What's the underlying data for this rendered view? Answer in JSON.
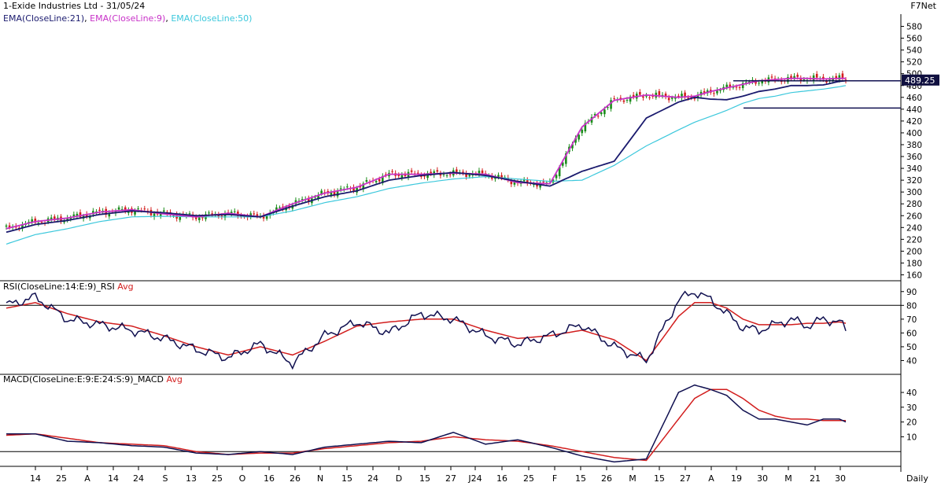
{
  "header": {
    "title": "1-Exide Industries Ltd - 31/05/24",
    "brand": "F7Net",
    "ema_labels": [
      {
        "text": "EMA(CloseLine:21)",
        "color": "#1a1a6e"
      },
      {
        "text": "EMA(CloseLine:9)",
        "color": "#c832c8"
      },
      {
        "text": "EMA(CloseLine:50)",
        "color": "#3cc8dc"
      }
    ],
    "comma": ", "
  },
  "price_panel": {
    "y_ticks": [
      "160",
      "180",
      "200",
      "220",
      "240",
      "260",
      "280",
      "300",
      "320",
      "340",
      "360",
      "380",
      "400",
      "420",
      "440",
      "460",
      "480",
      "500",
      "520",
      "540",
      "560",
      "580"
    ],
    "last_price": "489.25"
  },
  "rsi_panel": {
    "label": "RSI(CloseLine:14:E:9)_RSI",
    "avg_label": "Avg",
    "y_ticks": [
      "40",
      "50",
      "60",
      "70",
      "80",
      "90"
    ]
  },
  "macd_panel": {
    "label": "MACD(CloseLine:E:9:E:24:S:9)_MACD",
    "avg_label": "Avg",
    "y_ticks": [
      "10",
      "20",
      "30",
      "40"
    ]
  },
  "x_axis": {
    "ticks": [
      "14",
      "25",
      "A",
      "14",
      "24",
      "S",
      "13",
      "25",
      "O",
      "16",
      "26",
      "N",
      "15",
      "24",
      "D",
      "15",
      "27",
      "J24",
      "16",
      "25",
      "F",
      "15",
      "26",
      "M",
      "15",
      "27",
      "A",
      "19",
      "30",
      "M",
      "21",
      "30"
    ],
    "period": "Daily"
  },
  "colors": {
    "ema21": "#1a1a6e",
    "ema9": "#c832c8",
    "ema50": "#3cc8dc",
    "candle_up": "#1a8c1a",
    "candle_down": "#d21e1e",
    "rsi": "#101050",
    "rsi_avg": "#d21e1e",
    "macd": "#101050",
    "macd_avg": "#d21e1e"
  },
  "chart_data": [
    {
      "type": "line",
      "title": "1-Exide Industries Ltd - 31/05/24",
      "subtitle": "",
      "xlabel": "",
      "ylabel": "",
      "ylim": [
        150,
        590
      ],
      "x": [
        1,
        10,
        20,
        30,
        40,
        50,
        60,
        70,
        80,
        90,
        100,
        110,
        120,
        130,
        140,
        150,
        160,
        170,
        180,
        190,
        200,
        210,
        215,
        220,
        225,
        230,
        235,
        240,
        245,
        250,
        255,
        260,
        262
      ],
      "series": [
        {
          "name": "EMA(CloseLine:21)",
          "values": [
            232,
            245,
            252,
            262,
            268,
            265,
            260,
            262,
            258,
            276,
            292,
            302,
            320,
            328,
            333,
            328,
            318,
            310,
            335,
            352,
            425,
            452,
            460,
            457,
            456,
            462,
            470,
            474,
            480,
            480,
            481,
            487,
            488
          ]
        },
        {
          "name": "EMA(CloseLine:9)",
          "values": [
            238,
            250,
            256,
            266,
            270,
            263,
            258,
            264,
            258,
            280,
            298,
            308,
            330,
            330,
            332,
            330,
            316,
            314,
            410,
            455,
            464,
            460,
            462,
            470,
            476,
            482,
            488,
            490,
            492,
            492,
            491,
            492,
            492
          ]
        },
        {
          "name": "EMA(CloseLine:50)",
          "values": [
            212,
            228,
            238,
            250,
            258,
            259,
            258,
            258,
            258,
            268,
            282,
            292,
            306,
            315,
            322,
            326,
            322,
            318,
            320,
            345,
            378,
            405,
            418,
            428,
            438,
            450,
            458,
            462,
            468,
            471,
            474,
            478,
            480
          ]
        }
      ],
      "horizontal_levels": [
        488,
        442
      ],
      "last_price": 489.25
    },
    {
      "type": "line",
      "title": "RSI(CloseLine:14:E:9)_RSI",
      "ylim": [
        30,
        95
      ],
      "reference_lines": [
        80
      ],
      "x": [
        1,
        10,
        20,
        30,
        40,
        50,
        60,
        70,
        80,
        90,
        100,
        110,
        120,
        130,
        140,
        150,
        160,
        170,
        180,
        190,
        200,
        210,
        215,
        220,
        225,
        230,
        235,
        240,
        245,
        250,
        255,
        260,
        262
      ],
      "series": [
        {
          "name": "RSI",
          "values": [
            80,
            86,
            70,
            66,
            62,
            56,
            48,
            42,
            52,
            38,
            58,
            68,
            60,
            74,
            70,
            58,
            52,
            58,
            66,
            50,
            40,
            84,
            90,
            84,
            74,
            64,
            62,
            66,
            70,
            65,
            70,
            68,
            62
          ]
        },
        {
          "name": "Avg",
          "values": [
            78,
            82,
            74,
            68,
            65,
            58,
            50,
            44,
            50,
            44,
            54,
            65,
            68,
            70,
            70,
            62,
            56,
            58,
            62,
            55,
            40,
            72,
            82,
            82,
            78,
            70,
            66,
            66,
            66,
            67,
            67,
            68,
            67
          ]
        }
      ]
    },
    {
      "type": "line",
      "title": "MACD(CloseLine:E:9:E:24:S:9)_MACD",
      "ylim": [
        -10,
        48
      ],
      "reference_lines": [
        0
      ],
      "x": [
        1,
        10,
        20,
        30,
        40,
        50,
        60,
        70,
        80,
        90,
        100,
        110,
        120,
        130,
        140,
        150,
        160,
        170,
        180,
        190,
        200,
        210,
        215,
        220,
        225,
        230,
        235,
        240,
        245,
        250,
        255,
        260,
        262
      ],
      "series": [
        {
          "name": "MACD",
          "values": [
            12,
            12,
            7,
            6,
            4,
            3,
            -1,
            -2,
            0,
            -2,
            3,
            5,
            7,
            6,
            13,
            5,
            8,
            3,
            -3,
            -7,
            -5,
            40,
            45,
            42,
            38,
            28,
            22,
            22,
            20,
            18,
            22,
            22,
            20
          ]
        },
        {
          "name": "Avg",
          "values": [
            11,
            12,
            9,
            6,
            5,
            4,
            0,
            -2,
            -1,
            -1,
            2,
            4,
            6,
            7,
            10,
            8,
            7,
            4,
            0,
            -4,
            -6,
            22,
            36,
            42,
            42,
            36,
            28,
            24,
            22,
            22,
            21,
            21,
            21
          ]
        }
      ]
    }
  ]
}
